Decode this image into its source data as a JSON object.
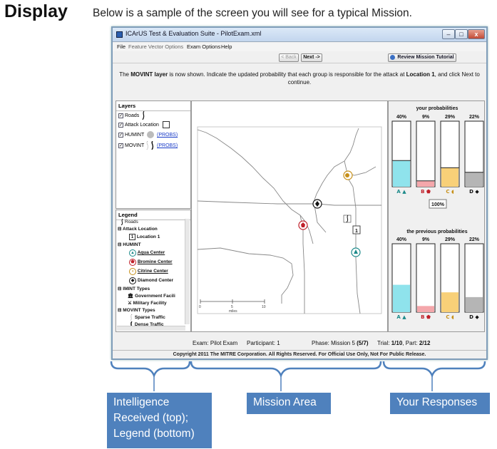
{
  "slide": {
    "title": "Display",
    "intro": "Below is a sample of the screen you will see for a typical Mission."
  },
  "window": {
    "title": "ICArUS Test & Evaluation Suite - PilotExam.xml",
    "controls": {
      "minimize": "–",
      "maximize": "□",
      "close": "x"
    }
  },
  "menu": {
    "file": "File",
    "feature_vector_options": "Feature Vector Options",
    "exam_options": "Exam Options",
    "help": "Help"
  },
  "nav": {
    "back": "< Back",
    "next": "Next ->",
    "tutorial": "Review Mission Tutorial"
  },
  "instructions": {
    "prefix": "The ",
    "layer": "MOVINT layer",
    "middle": " is now shown. Indicate the updated probability that each group is responsible for the attack at ",
    "location": "Location 1",
    "suffix": ", and click Next to continue."
  },
  "layers": {
    "title": "Layers",
    "items": [
      {
        "label": "Roads",
        "checked": true,
        "icon": "road-icon",
        "probs": ""
      },
      {
        "label": "Attack Location",
        "checked": true,
        "icon": "attack-square-icon",
        "probs": ""
      },
      {
        "label": "HUMINT",
        "checked": true,
        "icon": "gray-circle-icon",
        "probs": "(PROBS)"
      },
      {
        "label": "MOVINT",
        "checked": true,
        "icon": "traffic-icon",
        "probs": "(PROBS)"
      }
    ]
  },
  "legend": {
    "title": "Legend",
    "roads": "Roads",
    "attack_location": "Attack Location",
    "location_number": "1",
    "location_1": "Location 1",
    "humint": "HUMINT",
    "aqua": "Aqua Center",
    "bromine": "Bromine Center",
    "citrine": "Citrine Center",
    "diamond": "Diamond Center",
    "imint": "IMINT Types",
    "government": "Government Facili",
    "military": "Military Facility",
    "movint": "MOVINT Types",
    "sparse": "Sparse Traffic",
    "dense": "Dense Traffic"
  },
  "map": {
    "scale_labels": [
      "0",
      "5",
      "10"
    ],
    "scale_unit": "miles",
    "attack_marker": "1"
  },
  "responses": {
    "your_title": "your probabilities",
    "previous_title": "the previous probabilities",
    "total": "100%",
    "groups": [
      {
        "letter": "A",
        "symbol": "▲",
        "color": "#8fe3ec",
        "symbol_color": "#1c8a8a",
        "your": 40,
        "previous": 40
      },
      {
        "letter": "B",
        "symbol": "⬟",
        "color": "#f4a7ab",
        "symbol_color": "#c0202a",
        "your": 9,
        "previous": 9
      },
      {
        "letter": "C",
        "symbol": "◖",
        "color": "#f8d078",
        "symbol_color": "#c79018",
        "your": 29,
        "previous": 29
      },
      {
        "letter": "D",
        "symbol": "◆",
        "color": "#b5b5b5",
        "symbol_color": "#111111",
        "your": 22,
        "previous": 22
      }
    ]
  },
  "status": {
    "exam": "Exam: Pilot Exam",
    "participant": "Participant: 1",
    "phase_label": "Phase: Mission 5 ",
    "phase_progress": "(5/7)",
    "trial_label": "Trial: ",
    "trial_value": "1/10",
    "part_label": ", Part: ",
    "part_value": "2/12"
  },
  "copyright": "Copyright 2011 The MITRE Corporation. All Rights Reserved. For Official Use Only, Not For Public Release.",
  "captions": {
    "intel": "Intelligence Received (top); Legend (bottom)",
    "mission": "Mission Area",
    "responses": "Your Responses"
  },
  "colors": {
    "caption_bg": "#4f81bd",
    "brace": "#4f81bd",
    "window_border": "#7f9db9"
  }
}
